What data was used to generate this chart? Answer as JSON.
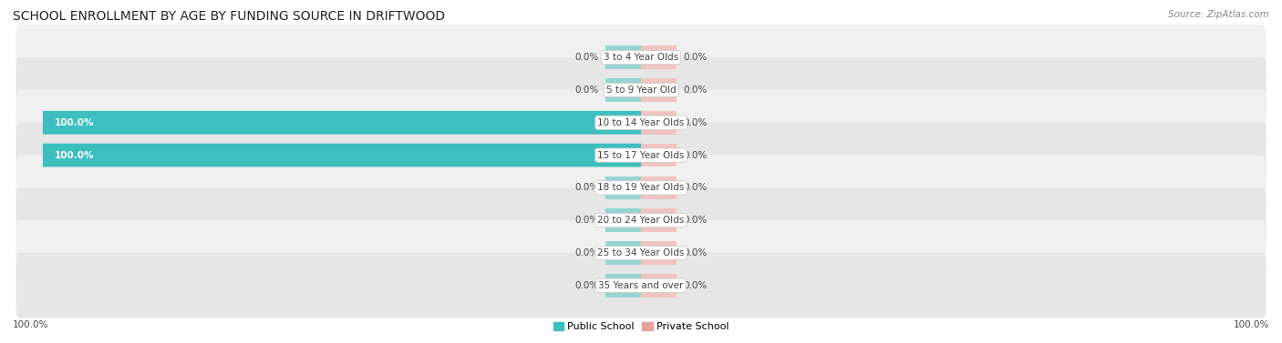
{
  "title": "SCHOOL ENROLLMENT BY AGE BY FUNDING SOURCE IN DRIFTWOOD",
  "source": "Source: ZipAtlas.com",
  "categories": [
    "3 to 4 Year Olds",
    "5 to 9 Year Old",
    "10 to 14 Year Olds",
    "15 to 17 Year Olds",
    "18 to 19 Year Olds",
    "20 to 24 Year Olds",
    "25 to 34 Year Olds",
    "35 Years and over"
  ],
  "public_values": [
    0.0,
    0.0,
    100.0,
    100.0,
    0.0,
    0.0,
    0.0,
    0.0
  ],
  "private_values": [
    0.0,
    0.0,
    0.0,
    0.0,
    0.0,
    0.0,
    0.0,
    0.0
  ],
  "public_color": "#3dbfbf",
  "private_color": "#e8a09a",
  "public_color_light": "#96d4d4",
  "private_color_light": "#f0c4c0",
  "row_bg_color": "#f0f0f0",
  "row_bg_alt_color": "#e6e6e6",
  "label_dark": "#444444",
  "label_white": "#ffffff",
  "title_fontsize": 10,
  "bar_label_fontsize": 7.5,
  "cat_label_fontsize": 7.5,
  "legend_fontsize": 8,
  "source_fontsize": 7.5,
  "axis_label_fontsize": 7.5,
  "x_range": 100,
  "stub_size": 6,
  "legend_pub_label": "Public School",
  "legend_priv_label": "Private School",
  "bottom_left_label": "100.0%",
  "bottom_right_label": "100.0%"
}
